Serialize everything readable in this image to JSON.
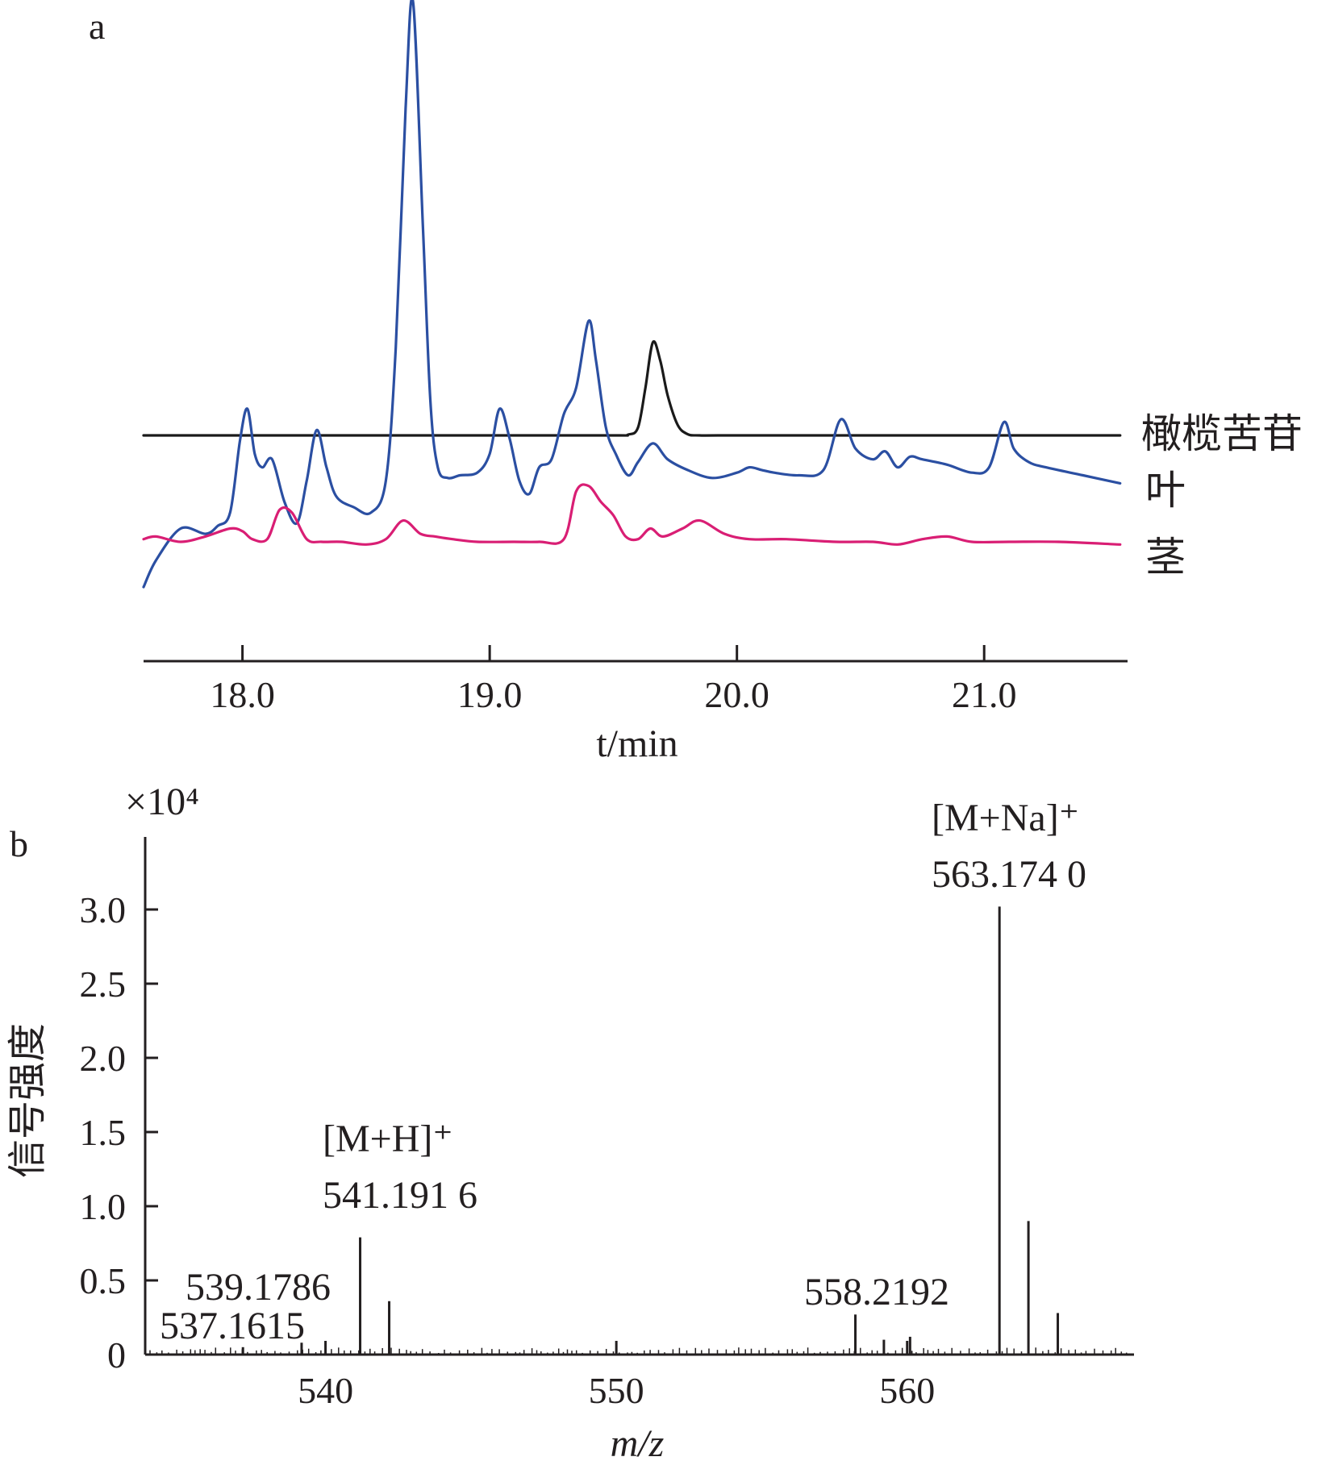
{
  "chart_data": [
    {
      "panel": "a",
      "type": "line",
      "xlabel": "t/min",
      "xlim": [
        17.6,
        21.58
      ],
      "xticks": [
        18.0,
        19.0,
        20.0,
        21.0
      ],
      "xtick_labels": [
        "18.0",
        "19.0",
        "20.0",
        "21.0"
      ],
      "series": [
        {
          "name": "橄榄苦苷",
          "color": "#1a1a1a",
          "offset": 0,
          "x": [
            17.6,
            18.0,
            19.0,
            19.5,
            19.56,
            19.6,
            19.63,
            19.66,
            19.69,
            19.72,
            19.76,
            19.8,
            19.85,
            20.0,
            21.0,
            21.55
          ],
          "y": [
            0,
            0,
            0,
            0,
            0.3,
            3,
            18,
            35,
            28,
            15,
            4,
            0.5,
            0,
            0,
            0,
            0
          ]
        },
        {
          "name": "叶",
          "color": "#2b4fa2",
          "offset": -17,
          "x": [
            17.6,
            17.65,
            17.75,
            17.85,
            17.9,
            17.95,
            17.99,
            18.02,
            18.05,
            18.08,
            18.12,
            18.17,
            18.22,
            18.26,
            18.3,
            18.34,
            18.38,
            18.45,
            18.52,
            18.58,
            18.62,
            18.66,
            18.69,
            18.73,
            18.76,
            18.79,
            18.83,
            18.88,
            18.95,
            19.0,
            19.04,
            19.08,
            19.12,
            19.16,
            19.2,
            19.25,
            19.3,
            19.35,
            19.4,
            19.43,
            19.47,
            19.51,
            19.56,
            19.6,
            19.66,
            19.72,
            19.8,
            19.9,
            20.0,
            20.05,
            20.1,
            20.15,
            20.25,
            20.35,
            20.42,
            20.48,
            20.55,
            20.6,
            20.65,
            20.7,
            20.75,
            20.85,
            20.95,
            21.02,
            21.08,
            21.12,
            21.18,
            21.25,
            21.4,
            21.55
          ],
          "y": [
            -40,
            -30,
            -18,
            -20,
            -17,
            -12,
            15,
            27,
            10,
            5,
            8,
            -8,
            -16,
            0,
            19,
            5,
            -6,
            -10,
            -12,
            0,
            50,
            140,
            180,
            95,
            30,
            5,
            1,
            2,
            3,
            10,
            27,
            16,
            0,
            -5,
            5,
            8,
            25,
            35,
            60,
            45,
            20,
            10,
            2,
            7,
            14,
            8,
            4,
            1,
            3,
            5,
            4,
            3,
            2,
            4,
            23,
            12,
            8,
            11,
            5,
            9,
            8,
            6,
            3,
            5,
            22,
            12,
            7,
            5,
            2,
            -1
          ]
        },
        {
          "name": "茎",
          "color": "#d91e74",
          "offset": -41,
          "x": [
            17.6,
            17.65,
            17.75,
            17.85,
            17.95,
            18.0,
            18.04,
            18.1,
            18.15,
            18.2,
            18.26,
            18.32,
            18.4,
            18.5,
            18.58,
            18.65,
            18.72,
            18.78,
            18.85,
            18.95,
            19.1,
            19.2,
            19.3,
            19.35,
            19.4,
            19.45,
            19.5,
            19.55,
            19.6,
            19.65,
            19.7,
            19.78,
            19.85,
            19.95,
            20.05,
            20.2,
            20.4,
            20.55,
            20.65,
            20.75,
            20.85,
            20.95,
            21.1,
            21.3,
            21.55
          ],
          "y": [
            2,
            3,
            1,
            3,
            6,
            5,
            2,
            2,
            13,
            12,
            2,
            1,
            1,
            0,
            2,
            9,
            4,
            3,
            2,
            1,
            1,
            1,
            2,
            20,
            22,
            16,
            11,
            3,
            2,
            6,
            3,
            6,
            9,
            4,
            2,
            2,
            1,
            1,
            0,
            2,
            3,
            1,
            1,
            1,
            0
          ]
        }
      ]
    },
    {
      "panel": "b",
      "type": "bar",
      "xlabel": "m/z",
      "ylabel": "信号强度",
      "multiplier_label": "×10⁴",
      "xlim": [
        533.8,
        567.8
      ],
      "ylim": [
        0,
        3.5
      ],
      "xticks": [
        540,
        550,
        560
      ],
      "xtick_labels": [
        "540",
        "550",
        "560"
      ],
      "yticks": [
        0,
        0.5,
        1.0,
        1.5,
        2.0,
        2.5,
        3.0
      ],
      "ytick_labels": [
        "0",
        "0.5",
        "1.0",
        "1.5",
        "2.0",
        "2.5",
        "3.0"
      ],
      "peaks": [
        {
          "x": 537.1615,
          "y": 0.05
        },
        {
          "x": 539.1786,
          "y": 0.08
        },
        {
          "x": 541.1916,
          "y": 0.79
        },
        {
          "x": 542.19,
          "y": 0.36
        },
        {
          "x": 558.2192,
          "y": 0.27
        },
        {
          "x": 559.2,
          "y": 0.1
        },
        {
          "x": 560.1,
          "y": 0.12
        },
        {
          "x": 563.174,
          "y": 3.02
        },
        {
          "x": 564.17,
          "y": 0.9
        },
        {
          "x": 565.18,
          "y": 0.28
        }
      ],
      "annotations": [
        {
          "label": "[M+Na]⁺",
          "value": "563.174 0"
        },
        {
          "label": "[M+H]⁺",
          "value": "541.191 6"
        },
        {
          "value": "539.1786"
        },
        {
          "value": "537.1615"
        },
        {
          "value": "558.2192"
        }
      ]
    }
  ],
  "panels": {
    "a": "a",
    "b": "b"
  }
}
